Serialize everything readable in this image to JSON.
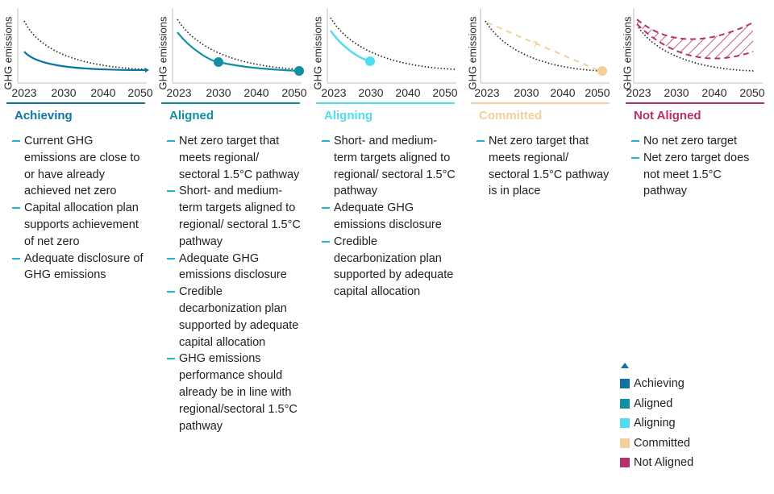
{
  "axis": {
    "ylabel": "GHG emissions",
    "xticks": [
      "2023",
      "2030",
      "2040",
      "2050"
    ]
  },
  "colors": {
    "achieving": "#0f74a3",
    "aligned": "#118fa3",
    "aligning": "#52dcf0",
    "committed": "#f2cf9c",
    "not_aligned": "#b8306a",
    "bullet_dash": "#1db9d8",
    "dotted_curve": "#1f1f1f"
  },
  "columns": [
    {
      "key": "achieving",
      "status": "Achieving",
      "bullets": [
        "Current GHG emissions are close to or have already achieved net zero",
        "Capital allocation plan supports achievement of net zero",
        "Adequate disclosure of GHG emissions"
      ]
    },
    {
      "key": "aligned",
      "status": "Aligned",
      "bullets": [
        "Net zero target that meets regional/ sectoral 1.5°C pathway",
        "Short- and medium-term targets aligned to regional/ sectoral 1.5°C pathway",
        "Adequate GHG emissions disclosure",
        "Credible decarbonization plan supported by adequate capital allocation",
        "GHG emissions performance should already be in line with regional/sectoral 1.5°C pathway"
      ]
    },
    {
      "key": "aligning",
      "status": "Aligning",
      "bullets": [
        "Short- and medium-term targets aligned to regional/ sectoral 1.5°C pathway",
        "Adequate GHG emissions disclosure",
        "Credible decarbonization plan supported by adequate capital allocation"
      ]
    },
    {
      "key": "committed",
      "status": "Committed",
      "question_mark": "?",
      "bullets": [
        "Net zero target that meets regional/ sectoral 1.5°C pathway is in place"
      ]
    },
    {
      "key": "not_aligned",
      "status": "Not Aligned",
      "bullets": [
        "No net zero target",
        "Net zero target does not meet 1.5°C pathway"
      ]
    }
  ],
  "legend": {
    "items": [
      "Achieving",
      "Aligned",
      "Aligning",
      "Committed",
      "Not Aligned"
    ]
  }
}
